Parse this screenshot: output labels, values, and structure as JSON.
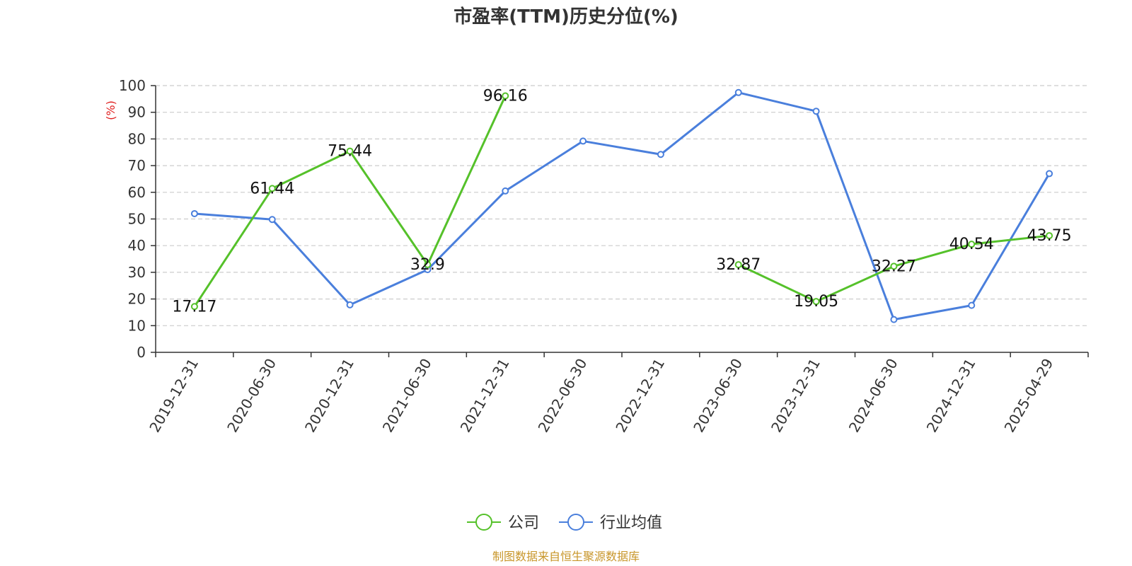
{
  "chart_data": {
    "type": "line",
    "title": "市盈率(TTM)历史分位(%)",
    "ylabel": "(%)",
    "ylim": [
      0,
      100
    ],
    "yticks": [
      0,
      10,
      20,
      30,
      40,
      50,
      60,
      70,
      80,
      90,
      100
    ],
    "grid": true,
    "legend_position": "bottom-center",
    "categories": [
      "2019-12-31",
      "2020-06-30",
      "2020-12-31",
      "2021-06-30",
      "2021-12-31",
      "2022-06-30",
      "2022-12-31",
      "2023-06-30",
      "2023-12-31",
      "2024-06-30",
      "2024-12-31",
      "2025-04-29"
    ],
    "series": [
      {
        "name": "公司",
        "color": "#55c12a",
        "values": [
          17.17,
          61.44,
          75.44,
          32.9,
          96.16,
          null,
          null,
          32.87,
          19.05,
          32.27,
          40.54,
          43.75
        ],
        "labels": [
          "17.17",
          "61.44",
          "75.44",
          "32.9",
          "96.16",
          "",
          "",
          "32.87",
          "19.05",
          "32.27",
          "40.54",
          "43.75"
        ]
      },
      {
        "name": "行业均值",
        "color": "#4a7fdc",
        "values": [
          52.0,
          49.8,
          17.8,
          31.0,
          60.5,
          79.2,
          74.2,
          97.4,
          90.4,
          12.3,
          17.6,
          67.0
        ]
      }
    ]
  },
  "footer": {
    "source": "制图数据来自恒生聚源数据库"
  }
}
